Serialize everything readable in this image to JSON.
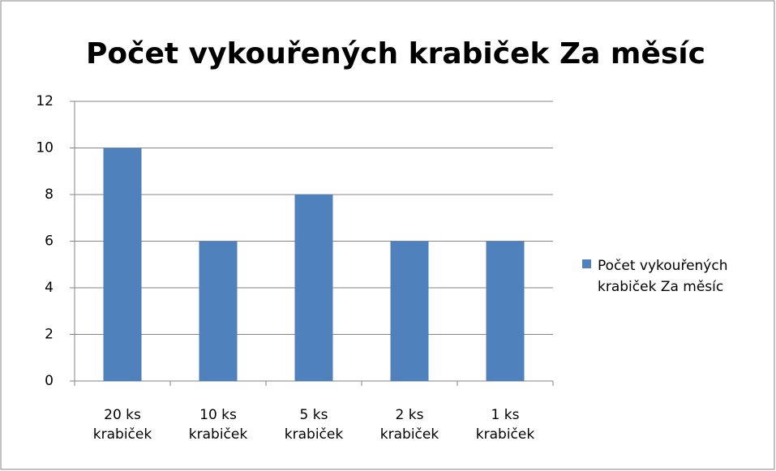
{
  "chart_data": {
    "type": "bar",
    "title": "Počet vykouřených krabiček Za měsíc",
    "categories": [
      "20 ks krabiček",
      "10 ks krabiček",
      "5 ks krabiček",
      "2 ks krabiček",
      "1 ks krabiček"
    ],
    "series": [
      {
        "name": "Počet vykouřených krabiček Za měsíc",
        "color": "#4f81bd",
        "values": [
          10,
          6,
          8,
          6,
          6
        ]
      }
    ],
    "ylim": [
      0,
      12
    ],
    "yticks": [
      0,
      2,
      4,
      6,
      8,
      10,
      12
    ],
    "grid": true,
    "legend": "right"
  }
}
